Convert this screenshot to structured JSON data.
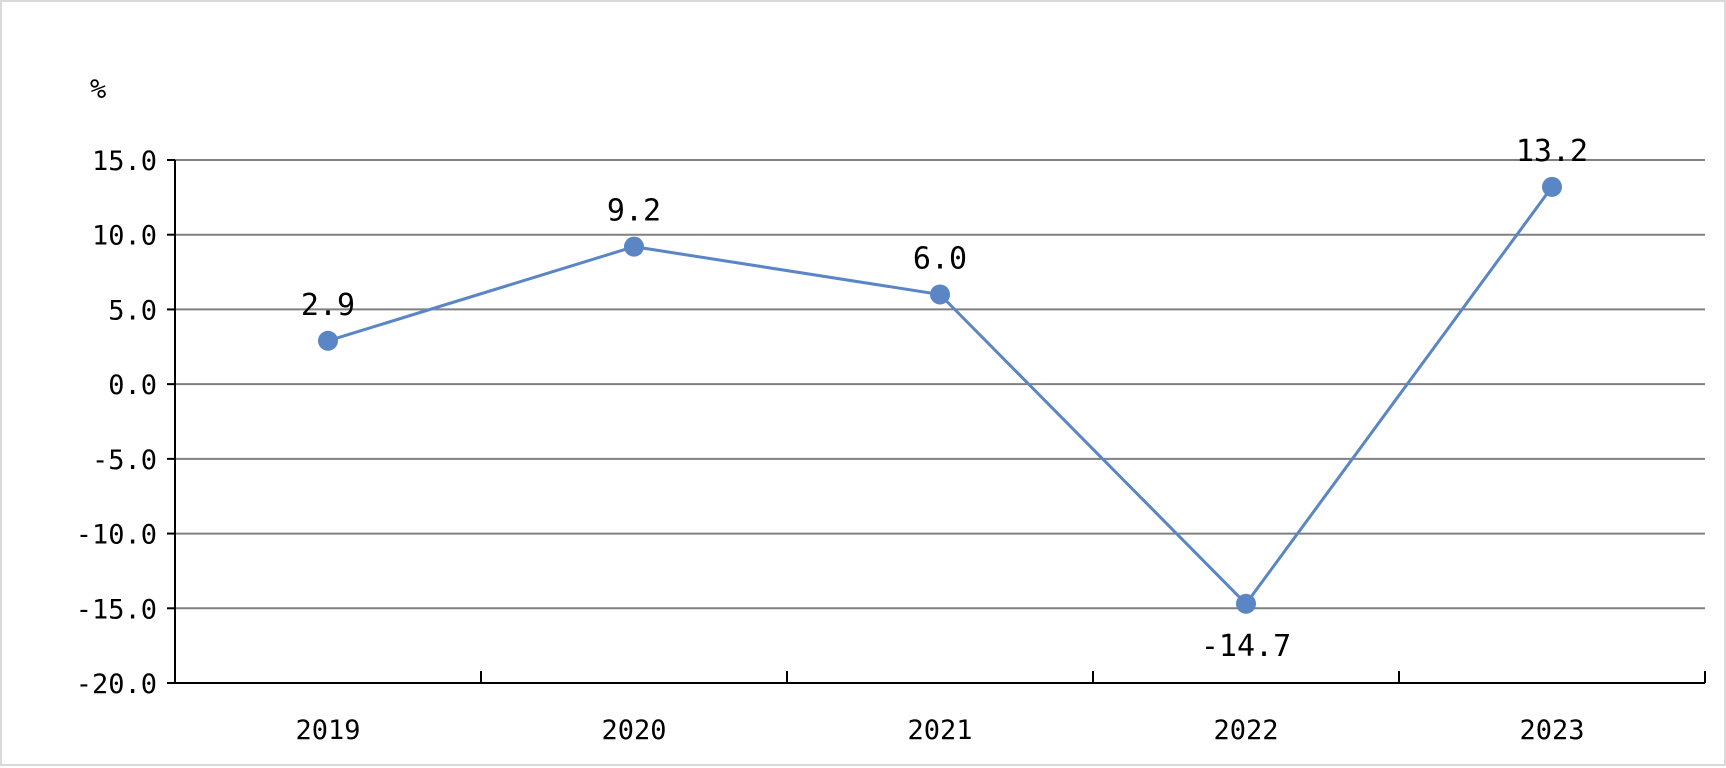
{
  "chart_data": {
    "type": "line",
    "title": "",
    "xlabel": "",
    "ylabel": "%",
    "categories": [
      "2019",
      "2020",
      "2021",
      "2022",
      "2023"
    ],
    "series": [
      {
        "values": [
          2.9,
          9.2,
          6.0,
          -14.7,
          13.2
        ],
        "labels": [
          "2.9",
          "9.2",
          "6.0",
          "-14.7",
          "13.2"
        ],
        "color": "#5a86c5"
      }
    ],
    "ylim": [
      -20.0,
      15.0
    ],
    "yticks": [
      15.0,
      10.0,
      5.0,
      0.0,
      -5.0,
      -10.0,
      -15.0,
      -20.0
    ],
    "ytick_labels": [
      "15.0",
      "10.0",
      "5.0",
      "0.0",
      "-5.0",
      "-10.0",
      "-15.0",
      "-20.0"
    ],
    "grid": true,
    "grid_color": "#808080",
    "legend": "none"
  }
}
